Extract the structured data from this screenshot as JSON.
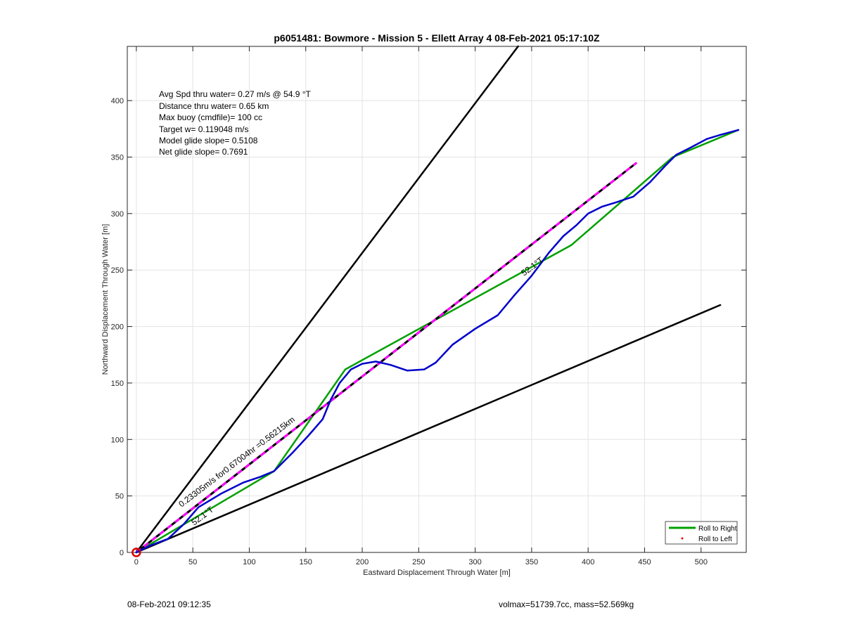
{
  "chart_data": {
    "type": "line",
    "title": "p6051481: Bowmore - Mission 5 - Ellett Array 4 08-Feb-2021 05:17:10Z",
    "xlabel": "Eastward Displacement Through Water [m]",
    "ylabel": "Northward Displacement Through Water [m]",
    "xlim": [
      -8,
      540
    ],
    "ylim": [
      0,
      448
    ],
    "xticks": [
      0,
      50,
      100,
      150,
      200,
      250,
      300,
      350,
      400,
      450,
      500
    ],
    "yticks": [
      0,
      50,
      100,
      150,
      200,
      250,
      300,
      350,
      400
    ],
    "grid": true,
    "legend_position": "bottom-right",
    "info_lines": [
      "Avg Spd thru water=  0.27 m/s @  54.9 °T",
      "Distance thru water=  0.65 km",
      "Max buoy (cmdfile)= 100 cc",
      "Target w= 0.119048 m/s",
      "Model glide slope= 0.5108",
      "Net glide slope= 0.7691"
    ],
    "legend": [
      {
        "label": "Roll to Right",
        "color": "#00a000",
        "style": "line"
      },
      {
        "label": "Roll to Left",
        "color": "#ff0000",
        "style": "dot"
      }
    ],
    "annotations": {
      "dashed_label": "0.23305m/s for0.67004hr =0.56215km",
      "heading_label_1": "52.1°T",
      "heading_label_2": "52.1°T"
    },
    "series": [
      {
        "name": "Roll to Right",
        "color": "#00a000",
        "x": [
          0,
          122,
          185,
          385,
          475,
          533
        ],
        "y": [
          0,
          72,
          162,
          272,
          350,
          374
        ]
      },
      {
        "color": "#0000cc",
        "x": [
          0,
          12,
          28,
          42,
          55,
          75,
          95,
          110,
          122,
          138,
          152,
          165,
          172,
          180,
          190,
          200,
          212,
          225,
          240,
          255,
          265,
          280,
          300,
          320,
          335,
          350,
          365,
          378,
          390,
          400,
          412,
          425,
          440,
          455,
          468,
          478,
          490,
          505,
          518,
          533
        ],
        "y": [
          0,
          6,
          12,
          25,
          40,
          52,
          62,
          67,
          72,
          88,
          103,
          118,
          135,
          150,
          162,
          167,
          169,
          166,
          161,
          162,
          168,
          184,
          198,
          210,
          228,
          245,
          265,
          280,
          290,
          300,
          306,
          310,
          315,
          328,
          342,
          352,
          358,
          366,
          370,
          374
        ]
      },
      {
        "color": "#ff00ff",
        "style": "dash",
        "x": [
          0,
          443
        ],
        "y": [
          0,
          345
        ]
      },
      {
        "color": "#000000",
        "x": [
          0,
          338
        ],
        "y": [
          0,
          448
        ]
      },
      {
        "color": "#000000",
        "x": [
          0,
          517
        ],
        "y": [
          0,
          219
        ]
      }
    ],
    "origin_marker": {
      "x": 0,
      "y": 0,
      "color": "#dd0000"
    }
  },
  "footer": {
    "left": "08-Feb-2021 09:12:35",
    "right": "volmax=51739.7cc, mass=52.569kg"
  }
}
